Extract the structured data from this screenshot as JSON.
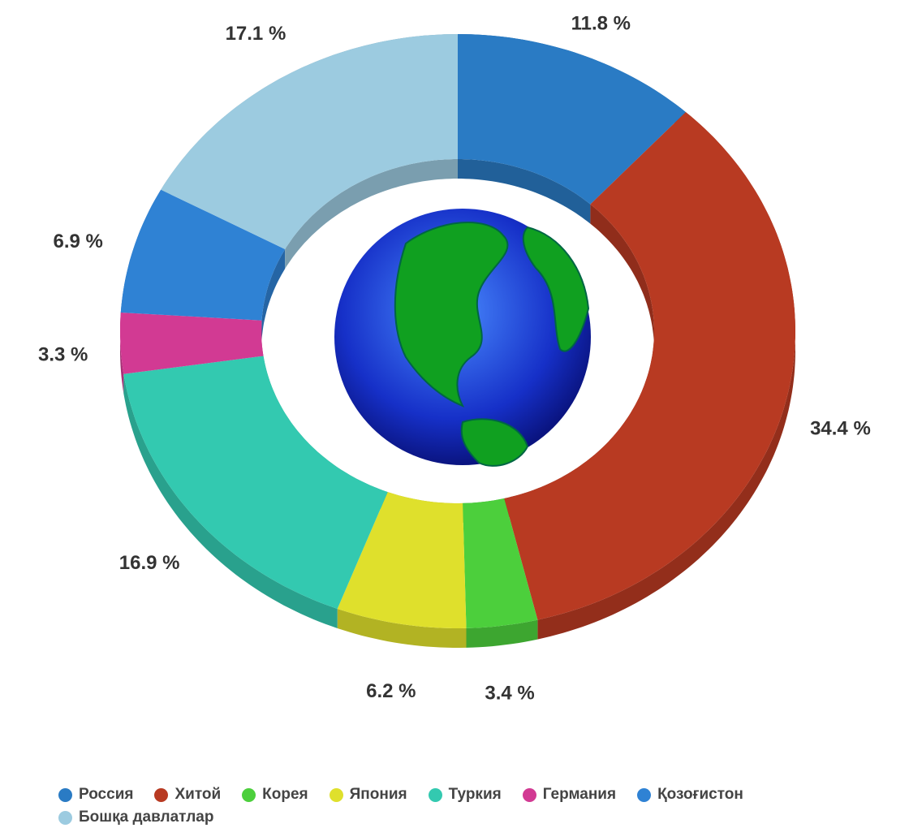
{
  "chart_data": {
    "type": "donut",
    "categories": [
      "Россия",
      "Хитой",
      "Корея",
      "Япония",
      "Туркия",
      "Германия",
      "Қозоғистон",
      "Бошқа давлатлар"
    ],
    "values": [
      11.8,
      34.4,
      3.4,
      6.2,
      16.9,
      3.3,
      6.9,
      17.1
    ],
    "value_labels": [
      "11.8 %",
      "34.4 %",
      "3.4 %",
      "6.2 %",
      "16.9 %",
      "3.3 %",
      "6.9 %",
      "17.1 %"
    ],
    "colors": [
      "#2a7bc4",
      "#b83a22",
      "#4ccf3c",
      "#dfe02c",
      "#33c9b0",
      "#d23a93",
      "#2f82d4",
      "#9ccbe0"
    ],
    "legend": "bottom"
  }
}
